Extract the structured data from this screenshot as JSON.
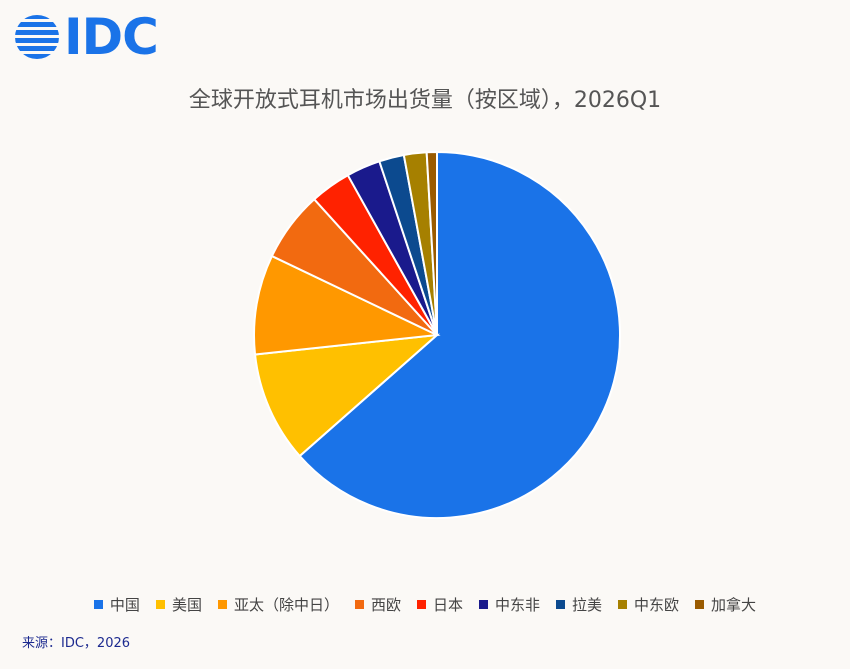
{
  "brand": {
    "logo_text": "IDC",
    "logo_color": "#1a73e8"
  },
  "chart_data": {
    "type": "pie",
    "title": "全球开放式耳机市场出货量（按区域），2026Q1",
    "categories": [
      "中国",
      "美国",
      "亚太（除中日）",
      "西欧",
      "日本",
      "中东非",
      "拉美",
      "中东欧",
      "加拿大"
    ],
    "values": [
      63.5,
      9.8,
      8.8,
      6.2,
      3.6,
      3.0,
      2.2,
      2.0,
      0.9
    ],
    "unit": "%",
    "colors": [
      "#1a73e8",
      "#ffc000",
      "#ff9800",
      "#f26a10",
      "#ff2200",
      "#1a1a8c",
      "#0c4a8f",
      "#a68000",
      "#9a5b00"
    ],
    "legend_position": "bottom",
    "start_angle": 0,
    "direction": "clockwise"
  },
  "source": "来源：IDC，2026"
}
